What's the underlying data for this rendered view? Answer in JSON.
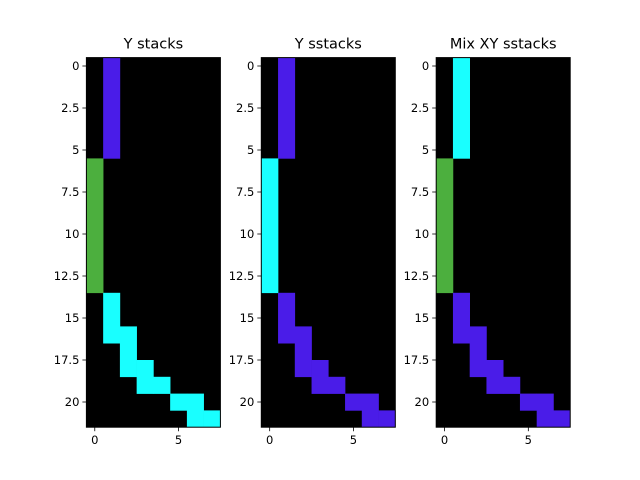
{
  "chart_data": [
    {
      "type": "heatmap",
      "title": "Y stacks",
      "xlabel": "",
      "ylabel": "",
      "ncols": 8,
      "nrows": 22,
      "xlim": [
        -0.5,
        7.5
      ],
      "ylim": [
        21.5,
        -0.5
      ],
      "xticks": [
        0,
        5
      ],
      "yticks": [
        0.0,
        2.5,
        5.0,
        7.5,
        10.0,
        12.5,
        15.0,
        17.5,
        20.0
      ],
      "background": "#000000",
      "cells": [
        {
          "x": 1,
          "y0": 0,
          "y1": 5,
          "color": "#4a1ce8"
        },
        {
          "x": 0,
          "y0": 6,
          "y1": 13,
          "color": "#4caf3e"
        },
        {
          "x": 1,
          "y0": 14,
          "y1": 16,
          "color": "#19ffff"
        },
        {
          "x": 2,
          "y0": 16,
          "y1": 18,
          "color": "#19ffff"
        },
        {
          "x": 3,
          "y0": 18,
          "y1": 19,
          "color": "#19ffff"
        },
        {
          "x": 4,
          "y0": 19,
          "y1": 19,
          "color": "#19ffff"
        },
        {
          "x": 5,
          "y0": 20,
          "y1": 20,
          "color": "#19ffff"
        },
        {
          "x": 6,
          "y0": 20,
          "y1": 21,
          "color": "#19ffff"
        },
        {
          "x": 7,
          "y0": 21,
          "y1": 21,
          "color": "#19ffff"
        }
      ]
    },
    {
      "type": "heatmap",
      "title": "Y sstacks",
      "xlabel": "",
      "ylabel": "",
      "ncols": 8,
      "nrows": 22,
      "xlim": [
        -0.5,
        7.5
      ],
      "ylim": [
        21.5,
        -0.5
      ],
      "xticks": [
        0,
        5
      ],
      "yticks": [
        0.0,
        2.5,
        5.0,
        7.5,
        10.0,
        12.5,
        15.0,
        17.5,
        20.0
      ],
      "background": "#000000",
      "cells": [
        {
          "x": 1,
          "y0": 0,
          "y1": 5,
          "color": "#4a1ce8"
        },
        {
          "x": 0,
          "y0": 6,
          "y1": 13,
          "color": "#19ffff"
        },
        {
          "x": 1,
          "y0": 14,
          "y1": 16,
          "color": "#4a1ce8"
        },
        {
          "x": 2,
          "y0": 16,
          "y1": 18,
          "color": "#4a1ce8"
        },
        {
          "x": 3,
          "y0": 18,
          "y1": 19,
          "color": "#4a1ce8"
        },
        {
          "x": 4,
          "y0": 19,
          "y1": 19,
          "color": "#4a1ce8"
        },
        {
          "x": 5,
          "y0": 20,
          "y1": 20,
          "color": "#4a1ce8"
        },
        {
          "x": 6,
          "y0": 20,
          "y1": 21,
          "color": "#4a1ce8"
        },
        {
          "x": 7,
          "y0": 21,
          "y1": 21,
          "color": "#4a1ce8"
        }
      ]
    },
    {
      "type": "heatmap",
      "title": "Mix XY sstacks",
      "xlabel": "",
      "ylabel": "",
      "ncols": 8,
      "nrows": 22,
      "xlim": [
        -0.5,
        7.5
      ],
      "ylim": [
        21.5,
        -0.5
      ],
      "xticks": [
        0,
        5
      ],
      "yticks": [
        0.0,
        2.5,
        5.0,
        7.5,
        10.0,
        12.5,
        15.0,
        17.5,
        20.0
      ],
      "background": "#000000",
      "cells": [
        {
          "x": 1,
          "y0": 0,
          "y1": 5,
          "color": "#19ffff"
        },
        {
          "x": 0,
          "y0": 6,
          "y1": 13,
          "color": "#4caf3e"
        },
        {
          "x": 1,
          "y0": 14,
          "y1": 16,
          "color": "#4a1ce8"
        },
        {
          "x": 2,
          "y0": 16,
          "y1": 18,
          "color": "#4a1ce8"
        },
        {
          "x": 3,
          "y0": 18,
          "y1": 19,
          "color": "#4a1ce8"
        },
        {
          "x": 4,
          "y0": 19,
          "y1": 19,
          "color": "#4a1ce8"
        },
        {
          "x": 5,
          "y0": 20,
          "y1": 20,
          "color": "#4a1ce8"
        },
        {
          "x": 6,
          "y0": 20,
          "y1": 21,
          "color": "#4a1ce8"
        },
        {
          "x": 7,
          "y0": 21,
          "y1": 21,
          "color": "#4a1ce8"
        }
      ]
    }
  ]
}
